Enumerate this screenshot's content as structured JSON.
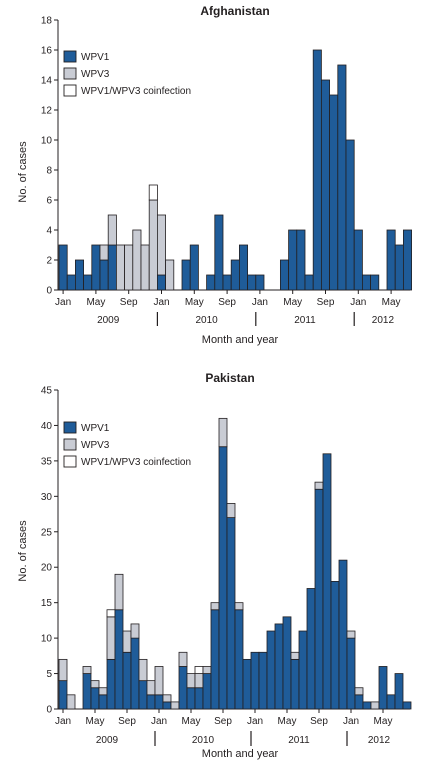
{
  "colors": {
    "wpv1": "#1f5c99",
    "wpv3": "#c9ccd4",
    "coinfection": "#ffffff",
    "stroke": "#231f20"
  },
  "chart_data": [
    {
      "type": "bar",
      "stacked": true,
      "title": "Afghanistan",
      "xlabel": "Month and year",
      "ylabel": "No. of cases",
      "ylim": [
        0,
        18
      ],
      "yticks": [
        0,
        2,
        4,
        6,
        8,
        10,
        12,
        14,
        16,
        18
      ],
      "legend_position": "top-left",
      "month_ticks": [
        "Jan",
        "May",
        "Sep",
        "Jan",
        "May",
        "Sep",
        "Jan",
        "May",
        "Sep",
        "Jan",
        "May"
      ],
      "month_tick_index": [
        0,
        4,
        8,
        12,
        16,
        20,
        24,
        28,
        32,
        36,
        40
      ],
      "year_labels": [
        "2009",
        "2010",
        "2011",
        "2012"
      ],
      "series": [
        {
          "name": "WPV1",
          "values": [
            3,
            1,
            2,
            1,
            3,
            2,
            3,
            0,
            0,
            0,
            0,
            0,
            1,
            0,
            0,
            2,
            3,
            0,
            1,
            5,
            1,
            2,
            3,
            1,
            1,
            0,
            0,
            2,
            4,
            4,
            1,
            16,
            14,
            13,
            15,
            10,
            4,
            1,
            1,
            0,
            4,
            3,
            4
          ]
        },
        {
          "name": "WPV3",
          "values": [
            0,
            0,
            0,
            0,
            0,
            1,
            2,
            3,
            3,
            4,
            3,
            6,
            4,
            2,
            0,
            0,
            0,
            0,
            0,
            0,
            0,
            0,
            0,
            0,
            0,
            0,
            0,
            0,
            0,
            0,
            0,
            0,
            0,
            0,
            0,
            0,
            0,
            0,
            0,
            0,
            0,
            0,
            0
          ]
        },
        {
          "name": "WPV1/WPV3 coinfection",
          "values": [
            0,
            0,
            0,
            0,
            0,
            0,
            0,
            0,
            0,
            0,
            0,
            1,
            0,
            0,
            0,
            0,
            0,
            0,
            0,
            0,
            0,
            0,
            0,
            0,
            0,
            0,
            0,
            0,
            0,
            0,
            0,
            0,
            0,
            0,
            0,
            0,
            0,
            0,
            0,
            0,
            0,
            0,
            0
          ]
        }
      ]
    },
    {
      "type": "bar",
      "stacked": true,
      "title": "Pakistan",
      "xlabel": "Month and year",
      "ylabel": "No. of cases",
      "ylim": [
        0,
        45
      ],
      "yticks": [
        0,
        5,
        10,
        15,
        20,
        25,
        30,
        35,
        40,
        45
      ],
      "legend_position": "top-left",
      "month_ticks": [
        "Jan",
        "May",
        "Sep",
        "Jan",
        "May",
        "Sep",
        "Jan",
        "May",
        "Sep",
        "Jan",
        "May"
      ],
      "month_tick_index": [
        0,
        4,
        8,
        12,
        16,
        20,
        24,
        28,
        32,
        36,
        40
      ],
      "year_labels": [
        "2009",
        "2010",
        "2011",
        "2012"
      ],
      "series": [
        {
          "name": "WPV1",
          "values": [
            4,
            0,
            0,
            5,
            3,
            2,
            7,
            14,
            8,
            10,
            4,
            2,
            2,
            1,
            0,
            6,
            3,
            3,
            5,
            14,
            37,
            27,
            14,
            7,
            8,
            8,
            11,
            12,
            13,
            7,
            11,
            17,
            31,
            36,
            18,
            21,
            10,
            2,
            1,
            0,
            6,
            2,
            5,
            1
          ]
        },
        {
          "name": "WPV3",
          "values": [
            3,
            2,
            0,
            1,
            1,
            1,
            6,
            5,
            3,
            2,
            3,
            2,
            4,
            1,
            1,
            2,
            2,
            2,
            1,
            1,
            4,
            2,
            1,
            0,
            0,
            0,
            0,
            0,
            0,
            1,
            0,
            0,
            1,
            0,
            0,
            0,
            1,
            1,
            0,
            1,
            0,
            0,
            0,
            0
          ]
        },
        {
          "name": "WPV1/WPV3 coinfection",
          "values": [
            0,
            0,
            0,
            0,
            0,
            0,
            1,
            0,
            0,
            0,
            0,
            0,
            0,
            0,
            0,
            0,
            0,
            1,
            0,
            0,
            0,
            0,
            0,
            0,
            0,
            0,
            0,
            0,
            0,
            0,
            0,
            0,
            0,
            0,
            0,
            0,
            0,
            0,
            0,
            0,
            0,
            0,
            0,
            0
          ]
        }
      ]
    }
  ]
}
